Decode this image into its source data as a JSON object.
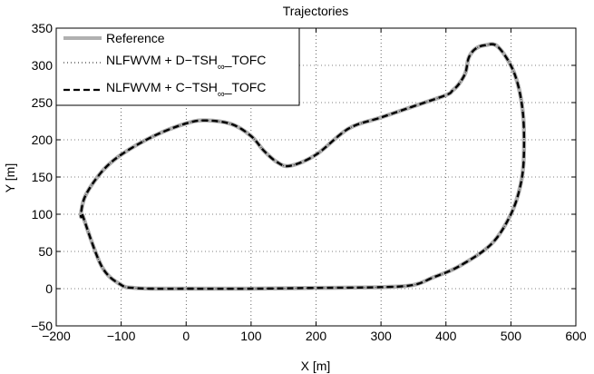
{
  "chart_data": {
    "type": "line",
    "title": "Trajectories",
    "xlabel": "X [m]",
    "ylabel": "Y [m]",
    "xlim": [
      -200,
      600
    ],
    "ylim": [
      -50,
      350
    ],
    "xticks": [
      -200,
      -100,
      0,
      100,
      200,
      300,
      400,
      500,
      600
    ],
    "yticks": [
      -50,
      0,
      50,
      100,
      150,
      200,
      250,
      300,
      350
    ],
    "grid": true,
    "legend_position": "top-left",
    "series": [
      {
        "name": "Reference",
        "style": "solid",
        "color": "#b0b0b0",
        "x": [
          -160,
          -130,
          -100,
          -80,
          -50,
          0,
          100,
          200,
          300,
          350,
          380,
          420,
          470,
          500,
          515,
          520,
          518,
          505,
          480,
          460,
          445,
          435,
          430,
          420,
          410,
          400,
          350,
          300,
          250,
          200,
          160,
          140,
          120,
          100,
          70,
          30,
          0,
          -50,
          -100,
          -130,
          -155,
          -162,
          -160
        ],
        "y": [
          100,
          30,
          5,
          1,
          0,
          0,
          0,
          1,
          2,
          5,
          15,
          30,
          60,
          100,
          140,
          180,
          240,
          290,
          325,
          327,
          322,
          310,
          290,
          275,
          266,
          260,
          245,
          230,
          215,
          180,
          165,
          170,
          185,
          205,
          221,
          226,
          222,
          205,
          180,
          157,
          125,
          100,
          95
        ]
      },
      {
        "name": "NLFWVM + D-TSH_∞_TOFC",
        "style": "dotted",
        "color": "#404040",
        "x": [
          -160,
          -130,
          -100,
          -80,
          -50,
          0,
          100,
          200,
          300,
          350,
          380,
          420,
          470,
          500,
          515,
          520,
          518,
          505,
          480,
          460,
          445,
          435,
          430,
          420,
          410,
          400,
          350,
          300,
          250,
          200,
          160,
          140,
          120,
          100,
          70,
          30,
          0,
          -50,
          -100,
          -130,
          -155,
          -162,
          -160
        ],
        "y": [
          100,
          30,
          5,
          1,
          0,
          0,
          0,
          1,
          2,
          5,
          15,
          30,
          60,
          100,
          140,
          180,
          240,
          290,
          325,
          327,
          322,
          310,
          290,
          275,
          266,
          260,
          245,
          230,
          215,
          180,
          165,
          170,
          185,
          205,
          221,
          226,
          222,
          205,
          180,
          157,
          125,
          100,
          95
        ]
      },
      {
        "name": "NLFWVM + C-TSH_∞_TOFC",
        "style": "dashed",
        "color": "#000000",
        "x": [
          -160,
          -130,
          -100,
          -80,
          -50,
          0,
          100,
          200,
          300,
          350,
          380,
          420,
          470,
          500,
          515,
          520,
          518,
          505,
          480,
          460,
          445,
          435,
          430,
          420,
          410,
          400,
          350,
          300,
          250,
          200,
          160,
          140,
          120,
          100,
          70,
          30,
          0,
          -50,
          -100,
          -130,
          -155,
          -162,
          -160
        ],
        "y": [
          100,
          30,
          5,
          1,
          0,
          0,
          0,
          1,
          2,
          5,
          15,
          30,
          60,
          100,
          140,
          180,
          240,
          290,
          325,
          327,
          322,
          310,
          290,
          275,
          266,
          260,
          245,
          230,
          215,
          180,
          165,
          170,
          185,
          205,
          221,
          226,
          222,
          205,
          180,
          157,
          125,
          100,
          95
        ]
      }
    ],
    "legend": {
      "entries": [
        {
          "prefix": "Reference",
          "sub": "",
          "suffix": ""
        },
        {
          "prefix": "NLFWVM + D−TSH",
          "sub": "∞",
          "suffix": "_TOFC"
        },
        {
          "prefix": "NLFWVM + C−TSH",
          "sub": "∞",
          "suffix": "_TOFC"
        }
      ]
    }
  }
}
